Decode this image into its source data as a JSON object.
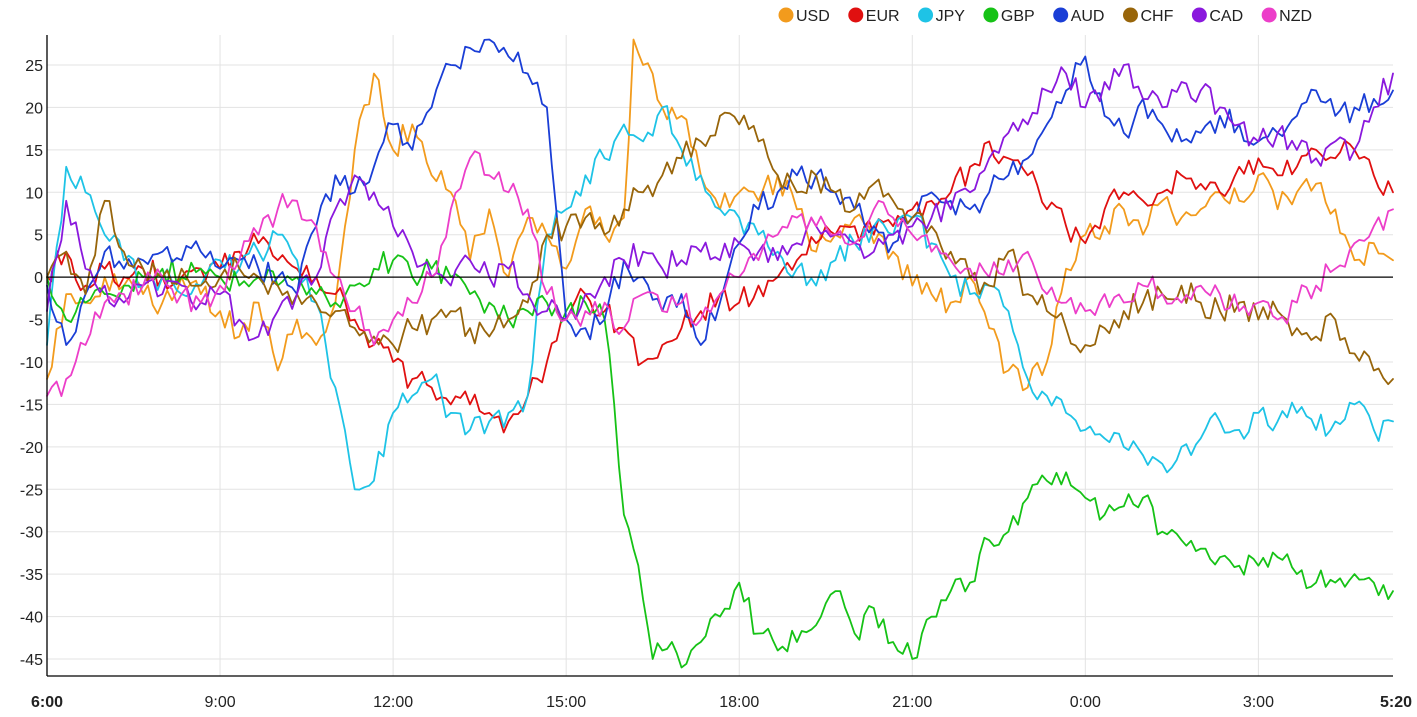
{
  "chart_data": {
    "type": "line",
    "title": "",
    "xlabel": "",
    "ylabel": "",
    "ylim": [
      -47,
      28.5
    ],
    "yticks": [
      25,
      20,
      15,
      10,
      5,
      0,
      -5,
      -10,
      -15,
      -20,
      -25,
      -30,
      -35,
      -40,
      -45
    ],
    "xlim": [
      0,
      1400
    ],
    "xticks": [
      {
        "label": "6:00",
        "x": 0,
        "bold": true
      },
      {
        "label": "9:00",
        "x": 180,
        "bold": false
      },
      {
        "label": "12:00",
        "x": 360,
        "bold": false
      },
      {
        "label": "15:00",
        "x": 540,
        "bold": false
      },
      {
        "label": "18:00",
        "x": 720,
        "bold": false
      },
      {
        "label": "21:00",
        "x": 900,
        "bold": false
      },
      {
        "label": "0:00",
        "x": 1080,
        "bold": false
      },
      {
        "label": "3:00",
        "x": 1260,
        "bold": false
      },
      {
        "label": "5:20",
        "x": 1400,
        "bold": true
      }
    ],
    "grid": true,
    "legend_position": "top-right",
    "series": [
      {
        "name": "USD",
        "color": "#f29b1d",
        "x": [
          0,
          20,
          40,
          60,
          80,
          100,
          120,
          140,
          160,
          180,
          200,
          220,
          240,
          260,
          280,
          300,
          310,
          320,
          340,
          360,
          380,
          400,
          420,
          440,
          460,
          480,
          500,
          520,
          540,
          560,
          580,
          600,
          610,
          620,
          640,
          660,
          680,
          700,
          720,
          740,
          760,
          780,
          800,
          820,
          840,
          860,
          880,
          900,
          920,
          940,
          960,
          980,
          1000,
          1020,
          1040,
          1060,
          1080,
          1100,
          1120,
          1140,
          1160,
          1180,
          1200,
          1220,
          1240,
          1260,
          1280,
          1300,
          1320,
          1340,
          1360,
          1380,
          1400
        ],
        "values": [
          -12,
          -2,
          -3,
          0,
          -1,
          -2,
          -3,
          0,
          -2,
          -4,
          -7,
          -3,
          -11,
          -5,
          -8,
          -3,
          6,
          15,
          24,
          15,
          18,
          12,
          10,
          2,
          8,
          0,
          7,
          5,
          1,
          8,
          5,
          7,
          28,
          25,
          20,
          19,
          12,
          8,
          10,
          9,
          12,
          8,
          3,
          5,
          7,
          4,
          3,
          -1,
          -2,
          -3,
          0,
          -6,
          -11,
          -13,
          -10,
          1,
          5,
          6,
          8,
          5,
          9,
          7,
          8,
          10,
          9,
          12,
          8,
          10,
          11,
          8,
          2,
          4,
          2
        ]
      },
      {
        "name": "EUR",
        "color": "#e01010",
        "x": [
          0,
          20,
          40,
          60,
          80,
          100,
          120,
          140,
          160,
          180,
          200,
          220,
          240,
          260,
          280,
          300,
          320,
          340,
          360,
          380,
          400,
          420,
          440,
          460,
          480,
          500,
          520,
          540,
          560,
          580,
          600,
          620,
          640,
          660,
          680,
          700,
          720,
          740,
          760,
          780,
          800,
          820,
          840,
          860,
          880,
          900,
          920,
          940,
          960,
          980,
          1000,
          1020,
          1040,
          1060,
          1080,
          1100,
          1120,
          1140,
          1160,
          1180,
          1200,
          1220,
          1240,
          1260,
          1280,
          1300,
          1320,
          1340,
          1360,
          1380,
          1400
        ],
        "values": [
          0,
          3,
          -1,
          1,
          0,
          1,
          0,
          0,
          1,
          1,
          3,
          4,
          2,
          1,
          0,
          -2,
          -5,
          -8,
          -10,
          -12,
          -13,
          -15,
          -15,
          -16,
          -17,
          -14,
          -10,
          -5,
          -2,
          -4,
          -6,
          -10,
          -8,
          -6,
          -4,
          -2,
          -3,
          -1,
          0,
          2,
          4,
          5,
          6,
          5,
          6,
          8,
          9,
          10,
          13,
          16,
          14,
          12,
          8,
          6,
          4,
          8,
          10,
          9,
          10,
          12,
          11,
          10,
          13,
          14,
          12,
          13,
          15,
          14,
          15,
          12,
          10
        ]
      },
      {
        "name": "JPY",
        "color": "#1ec3e6",
        "x": [
          0,
          20,
          40,
          60,
          80,
          100,
          120,
          140,
          160,
          180,
          200,
          220,
          240,
          260,
          280,
          290,
          300,
          320,
          340,
          360,
          380,
          400,
          420,
          440,
          460,
          480,
          500,
          520,
          540,
          560,
          580,
          600,
          620,
          640,
          660,
          680,
          700,
          720,
          740,
          760,
          780,
          800,
          820,
          840,
          860,
          880,
          900,
          920,
          940,
          960,
          980,
          1000,
          1010,
          1020,
          1040,
          1060,
          1080,
          1100,
          1120,
          1140,
          1160,
          1180,
          1200,
          1220,
          1240,
          1260,
          1280,
          1300,
          1320,
          1340,
          1360,
          1380,
          1400
        ],
        "values": [
          -8,
          13,
          10,
          5,
          2,
          -1,
          0,
          -2,
          -1,
          2,
          1,
          3,
          5,
          2,
          -3,
          -8,
          -13,
          -25,
          -24,
          -16,
          -14,
          -12,
          -16,
          -18,
          -17,
          -16,
          -14,
          5,
          8,
          12,
          14,
          18,
          16,
          20,
          15,
          12,
          8,
          7,
          5,
          3,
          1,
          -1,
          2,
          4,
          6,
          5,
          7,
          4,
          0,
          -2,
          -1,
          -4,
          -8,
          -12,
          -14,
          -16,
          -18,
          -19,
          -20,
          -21,
          -22,
          -20,
          -19,
          -17,
          -18,
          -16,
          -17,
          -16,
          -18,
          -17,
          -15,
          -18,
          -17
        ]
      },
      {
        "name": "GBP",
        "color": "#16c216",
        "x": [
          0,
          20,
          40,
          60,
          80,
          100,
          120,
          140,
          160,
          180,
          200,
          220,
          240,
          260,
          280,
          300,
          320,
          340,
          360,
          380,
          400,
          420,
          440,
          460,
          480,
          500,
          520,
          540,
          560,
          580,
          590,
          600,
          610,
          620,
          630,
          640,
          650,
          660,
          670,
          680,
          700,
          720,
          740,
          760,
          780,
          800,
          820,
          840,
          860,
          880,
          900,
          920,
          940,
          960,
          980,
          1000,
          1020,
          1040,
          1060,
          1080,
          1100,
          1120,
          1140,
          1160,
          1180,
          1200,
          1220,
          1240,
          1260,
          1280,
          1300,
          1320,
          1340,
          1360,
          1380,
          1400
        ],
        "values": [
          0,
          -5,
          -3,
          -2,
          -1,
          0,
          1,
          0,
          1,
          0,
          -1,
          0,
          -1,
          0,
          -2,
          -3,
          -1,
          1,
          2,
          0,
          1,
          0,
          -2,
          -3,
          -5,
          -4,
          -3,
          -4,
          -3,
          -5,
          -15,
          -28,
          -32,
          -38,
          -45,
          -44,
          -43,
          -46,
          -44,
          -43,
          -40,
          -36,
          -42,
          -44,
          -43,
          -41,
          -37,
          -42,
          -39,
          -43,
          -45,
          -40,
          -37,
          -36,
          -31,
          -30,
          -26,
          -24,
          -23,
          -26,
          -28,
          -27,
          -26,
          -30,
          -31,
          -32,
          -33,
          -34,
          -34,
          -33,
          -35,
          -36,
          -36,
          -35,
          -36,
          -37
        ]
      },
      {
        "name": "AUD",
        "color": "#1a3ed6",
        "x": [
          0,
          20,
          40,
          60,
          80,
          100,
          120,
          140,
          160,
          180,
          200,
          220,
          240,
          260,
          280,
          300,
          320,
          340,
          360,
          380,
          400,
          420,
          440,
          460,
          480,
          500,
          520,
          540,
          560,
          580,
          600,
          620,
          640,
          660,
          680,
          700,
          720,
          740,
          760,
          780,
          800,
          820,
          840,
          860,
          880,
          900,
          920,
          940,
          960,
          980,
          1000,
          1020,
          1040,
          1060,
          1080,
          1100,
          1120,
          1140,
          1160,
          1180,
          1200,
          1220,
          1240,
          1260,
          1280,
          1300,
          1320,
          1340,
          1360,
          1380,
          1400
        ],
        "values": [
          -1,
          -8,
          -2,
          3,
          1,
          2,
          3,
          2,
          3,
          1,
          2,
          1,
          0,
          -2,
          6,
          12,
          10,
          13,
          18,
          15,
          20,
          25,
          27,
          28,
          26,
          24,
          20,
          -5,
          -6,
          -5,
          2,
          0,
          -4,
          -2,
          -8,
          -3,
          4,
          8,
          10,
          12,
          12,
          10,
          8,
          6,
          4,
          7,
          10,
          9,
          8,
          10,
          12,
          14,
          18,
          22,
          26,
          19,
          17,
          21,
          18,
          16,
          17,
          19,
          18,
          16,
          17,
          19,
          22,
          19,
          20,
          21,
          22
        ]
      },
      {
        "name": "CHF",
        "color": "#98650a",
        "x": [
          0,
          20,
          40,
          60,
          80,
          100,
          120,
          140,
          160,
          180,
          200,
          220,
          240,
          260,
          280,
          300,
          320,
          340,
          360,
          380,
          400,
          420,
          440,
          460,
          480,
          500,
          520,
          540,
          560,
          580,
          600,
          620,
          640,
          660,
          680,
          700,
          720,
          740,
          760,
          780,
          800,
          820,
          840,
          860,
          880,
          900,
          920,
          940,
          960,
          980,
          1000,
          1020,
          1040,
          1060,
          1080,
          1100,
          1120,
          1140,
          1160,
          1180,
          1200,
          1220,
          1240,
          1260,
          1280,
          1300,
          1320,
          1340,
          1360,
          1380,
          1400
        ],
        "values": [
          0,
          3,
          -2,
          9,
          3,
          1,
          0,
          1,
          -1,
          0,
          1,
          0,
          -1,
          -2,
          -3,
          -4,
          -6,
          -7,
          -8,
          -6,
          -5,
          -4,
          -6,
          -7,
          -5,
          -3,
          5,
          6,
          7,
          5,
          8,
          10,
          12,
          14,
          16,
          19,
          18,
          16,
          12,
          10,
          12,
          10,
          8,
          11,
          9,
          7,
          6,
          3,
          0,
          -1,
          3,
          -2,
          -4,
          -6,
          -8,
          -6,
          -4,
          -3,
          -2,
          -1,
          -3,
          -4,
          -3,
          -5,
          -4,
          -6,
          -7,
          -5,
          -9,
          -11,
          -12
        ]
      },
      {
        "name": "CAD",
        "color": "#8a18dd",
        "x": [
          0,
          20,
          40,
          60,
          80,
          100,
          120,
          140,
          160,
          180,
          200,
          220,
          240,
          260,
          280,
          300,
          320,
          340,
          360,
          380,
          400,
          420,
          440,
          460,
          480,
          500,
          520,
          540,
          560,
          580,
          600,
          620,
          640,
          660,
          680,
          700,
          720,
          740,
          760,
          780,
          800,
          820,
          840,
          860,
          880,
          900,
          920,
          940,
          960,
          980,
          1000,
          1020,
          1040,
          1060,
          1080,
          1100,
          1120,
          1140,
          1160,
          1180,
          1200,
          1220,
          1240,
          1260,
          1280,
          1300,
          1320,
          1340,
          1360,
          1380,
          1400
        ],
        "values": [
          -4,
          9,
          1,
          -1,
          -3,
          -1,
          -2,
          -1,
          -3,
          -2,
          -5,
          -7,
          -4,
          -2,
          0,
          8,
          12,
          10,
          6,
          3,
          0,
          -1,
          2,
          0,
          1,
          -2,
          -4,
          -5,
          -2,
          0,
          2,
          3,
          1,
          2,
          3,
          2,
          4,
          3,
          2,
          4,
          6,
          5,
          4,
          3,
          5,
          6,
          7,
          8,
          10,
          14,
          17,
          18,
          22,
          24,
          20,
          23,
          25,
          21,
          20,
          23,
          22,
          20,
          18,
          16,
          17,
          15,
          14,
          16,
          15,
          20,
          24
        ]
      },
      {
        "name": "NZD",
        "color": "#ec3ec9",
        "x": [
          0,
          20,
          40,
          60,
          80,
          100,
          120,
          140,
          160,
          180,
          200,
          220,
          240,
          260,
          280,
          300,
          320,
          340,
          360,
          380,
          400,
          420,
          440,
          460,
          480,
          500,
          520,
          540,
          560,
          580,
          600,
          620,
          640,
          660,
          680,
          700,
          720,
          740,
          760,
          780,
          800,
          820,
          840,
          860,
          880,
          900,
          920,
          940,
          960,
          980,
          1000,
          1020,
          1040,
          1060,
          1080,
          1100,
          1120,
          1140,
          1160,
          1180,
          1200,
          1220,
          1240,
          1260,
          1280,
          1300,
          1320,
          1340,
          1360,
          1380,
          1400
        ],
        "values": [
          -14,
          -12,
          -8,
          -3,
          -2,
          -1,
          0,
          -2,
          -3,
          -1,
          2,
          5,
          8,
          9,
          6,
          0,
          -4,
          -8,
          -5,
          -3,
          0,
          8,
          14,
          12,
          10,
          8,
          -2,
          -5,
          -4,
          -3,
          -6,
          -2,
          -4,
          -3,
          -5,
          -2,
          0,
          2,
          5,
          7,
          6,
          5,
          4,
          8,
          7,
          5,
          3,
          2,
          1,
          0,
          2,
          3,
          -2,
          -3,
          -4,
          -2,
          -3,
          -1,
          -2,
          -3,
          -1,
          -2,
          -4,
          -3,
          -5,
          -3,
          -1,
          1,
          4,
          6,
          8
        ]
      }
    ]
  }
}
